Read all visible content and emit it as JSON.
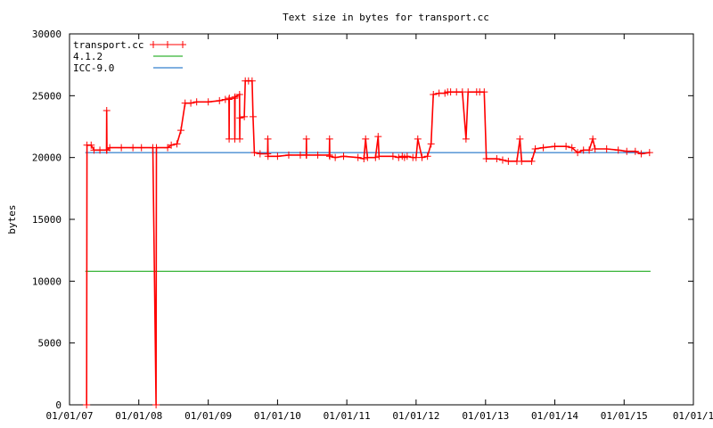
{
  "chart_data": {
    "type": "line",
    "title": "Text size in bytes for transport.cc",
    "ylabel": "bytes",
    "xlabel": "",
    "ylim": [
      0,
      30000
    ],
    "xlim": [
      "2007-01-01",
      "2016-01-01"
    ],
    "y_ticks": [
      0,
      5000,
      10000,
      15000,
      20000,
      25000,
      30000
    ],
    "x_ticks": [
      {
        "date": "2007-01-01",
        "label": "01/01/07"
      },
      {
        "date": "2008-01-01",
        "label": "01/01/08"
      },
      {
        "date": "2009-01-01",
        "label": "01/01/09"
      },
      {
        "date": "2010-01-01",
        "label": "01/01/10"
      },
      {
        "date": "2011-01-01",
        "label": "01/01/11"
      },
      {
        "date": "2012-01-01",
        "label": "01/01/12"
      },
      {
        "date": "2013-01-01",
        "label": "01/01/13"
      },
      {
        "date": "2014-01-01",
        "label": "01/01/14"
      },
      {
        "date": "2015-01-01",
        "label": "01/01/15"
      },
      {
        "date": "2016-01-01",
        "label": "01/01/1"
      }
    ],
    "legend_position": "top-left",
    "grid": false,
    "series": [
      {
        "name": "transport.cc",
        "color": "#ff0000",
        "marker": "plus",
        "points": [
          [
            "2007-04-01",
            0
          ],
          [
            "2007-04-03",
            21000
          ],
          [
            "2007-04-25",
            21000
          ],
          [
            "2007-05-10",
            20600
          ],
          [
            "2007-06-10",
            20600
          ],
          [
            "2007-07-15",
            20600
          ],
          [
            "2007-07-16",
            23800
          ],
          [
            "2007-07-17",
            20600
          ],
          [
            "2007-08-01",
            20800
          ],
          [
            "2007-10-01",
            20800
          ],
          [
            "2007-12-01",
            20800
          ],
          [
            "2008-01-15",
            20800
          ],
          [
            "2008-03-15",
            20800
          ],
          [
            "2008-04-01",
            0
          ],
          [
            "2008-04-03",
            20800
          ],
          [
            "2008-06-01",
            20800
          ],
          [
            "2008-06-20",
            21000
          ],
          [
            "2008-07-20",
            21100
          ],
          [
            "2008-08-10",
            22200
          ],
          [
            "2008-09-01",
            24400
          ],
          [
            "2008-10-01",
            24400
          ],
          [
            "2008-11-01",
            24500
          ],
          [
            "2009-01-01",
            24500
          ],
          [
            "2009-03-01",
            24600
          ],
          [
            "2009-04-01",
            24700
          ],
          [
            "2009-04-20",
            24700
          ],
          [
            "2009-04-21",
            21500
          ],
          [
            "2009-04-22",
            24800
          ],
          [
            "2009-05-20",
            24800
          ],
          [
            "2009-05-21",
            21500
          ],
          [
            "2009-05-22",
            24900
          ],
          [
            "2009-06-15",
            25100
          ],
          [
            "2009-06-16",
            21500
          ],
          [
            "2009-06-17",
            23200
          ],
          [
            "2009-07-10",
            23300
          ],
          [
            "2009-07-15",
            26200
          ],
          [
            "2009-08-01",
            26200
          ],
          [
            "2009-08-20",
            26200
          ],
          [
            "2009-08-25",
            23300
          ],
          [
            "2009-09-01",
            20400
          ],
          [
            "2009-10-01",
            20300
          ],
          [
            "2009-11-10",
            20300
          ],
          [
            "2009-11-11",
            21500
          ],
          [
            "2009-11-12",
            20100
          ],
          [
            "2010-01-01",
            20100
          ],
          [
            "2010-03-01",
            20200
          ],
          [
            "2010-05-01",
            20200
          ],
          [
            "2010-06-01",
            20200
          ],
          [
            "2010-06-02",
            21500
          ],
          [
            "2010-06-03",
            20200
          ],
          [
            "2010-08-01",
            20200
          ],
          [
            "2010-10-01",
            20200
          ],
          [
            "2010-10-02",
            21500
          ],
          [
            "2010-10-03",
            20100
          ],
          [
            "2010-11-01",
            20000
          ],
          [
            "2010-12-15",
            20100
          ],
          [
            "2011-03-01",
            20000
          ],
          [
            "2011-04-01",
            19900
          ],
          [
            "2011-04-10",
            21500
          ],
          [
            "2011-04-20",
            20000
          ],
          [
            "2011-06-01",
            20000
          ],
          [
            "2011-06-15",
            21700
          ],
          [
            "2011-06-20",
            20100
          ],
          [
            "2011-09-01",
            20100
          ],
          [
            "2011-10-01",
            20000
          ],
          [
            "2011-10-20",
            20100
          ],
          [
            "2011-11-01",
            20000
          ],
          [
            "2011-11-15",
            20100
          ],
          [
            "2011-12-15",
            20000
          ],
          [
            "2012-01-01",
            20000
          ],
          [
            "2012-01-10",
            21500
          ],
          [
            "2012-02-01",
            20000
          ],
          [
            "2012-03-01",
            20100
          ],
          [
            "2012-03-20",
            21100
          ],
          [
            "2012-04-01",
            25100
          ],
          [
            "2012-05-01",
            25200
          ],
          [
            "2012-06-01",
            25200
          ],
          [
            "2012-06-15",
            25300
          ],
          [
            "2012-07-01",
            25300
          ],
          [
            "2012-08-01",
            25300
          ],
          [
            "2012-09-01",
            25300
          ],
          [
            "2012-09-20",
            21500
          ],
          [
            "2012-10-01",
            25300
          ],
          [
            "2012-11-15",
            25300
          ],
          [
            "2012-12-01",
            25300
          ],
          [
            "2012-12-25",
            25300
          ],
          [
            "2013-01-05",
            19900
          ],
          [
            "2013-03-01",
            19900
          ],
          [
            "2013-04-01",
            19800
          ],
          [
            "2013-05-01",
            19700
          ],
          [
            "2013-06-15",
            19700
          ],
          [
            "2013-07-01",
            21500
          ],
          [
            "2013-07-10",
            19700
          ],
          [
            "2013-09-01",
            19700
          ],
          [
            "2013-09-20",
            20700
          ],
          [
            "2013-11-01",
            20800
          ],
          [
            "2014-01-01",
            20900
          ],
          [
            "2014-03-01",
            20900
          ],
          [
            "2014-04-01",
            20800
          ],
          [
            "2014-05-01",
            20400
          ],
          [
            "2014-06-01",
            20600
          ],
          [
            "2014-07-01",
            20600
          ],
          [
            "2014-07-20",
            21500
          ],
          [
            "2014-08-01",
            20700
          ],
          [
            "2014-10-01",
            20700
          ],
          [
            "2014-12-01",
            20600
          ],
          [
            "2015-01-15",
            20500
          ],
          [
            "2015-03-01",
            20500
          ],
          [
            "2015-04-01",
            20300
          ],
          [
            "2015-05-15",
            20400
          ]
        ]
      },
      {
        "name": "4.1.2",
        "color": "#00a000",
        "marker": "none",
        "points": [
          [
            "2007-03-25",
            10800
          ],
          [
            "2015-05-20",
            10800
          ]
        ]
      },
      {
        "name": "ICC-9.0",
        "color": "#0060c0",
        "marker": "none",
        "points": [
          [
            "2007-03-25",
            20400
          ],
          [
            "2015-05-20",
            20400
          ]
        ]
      }
    ]
  }
}
